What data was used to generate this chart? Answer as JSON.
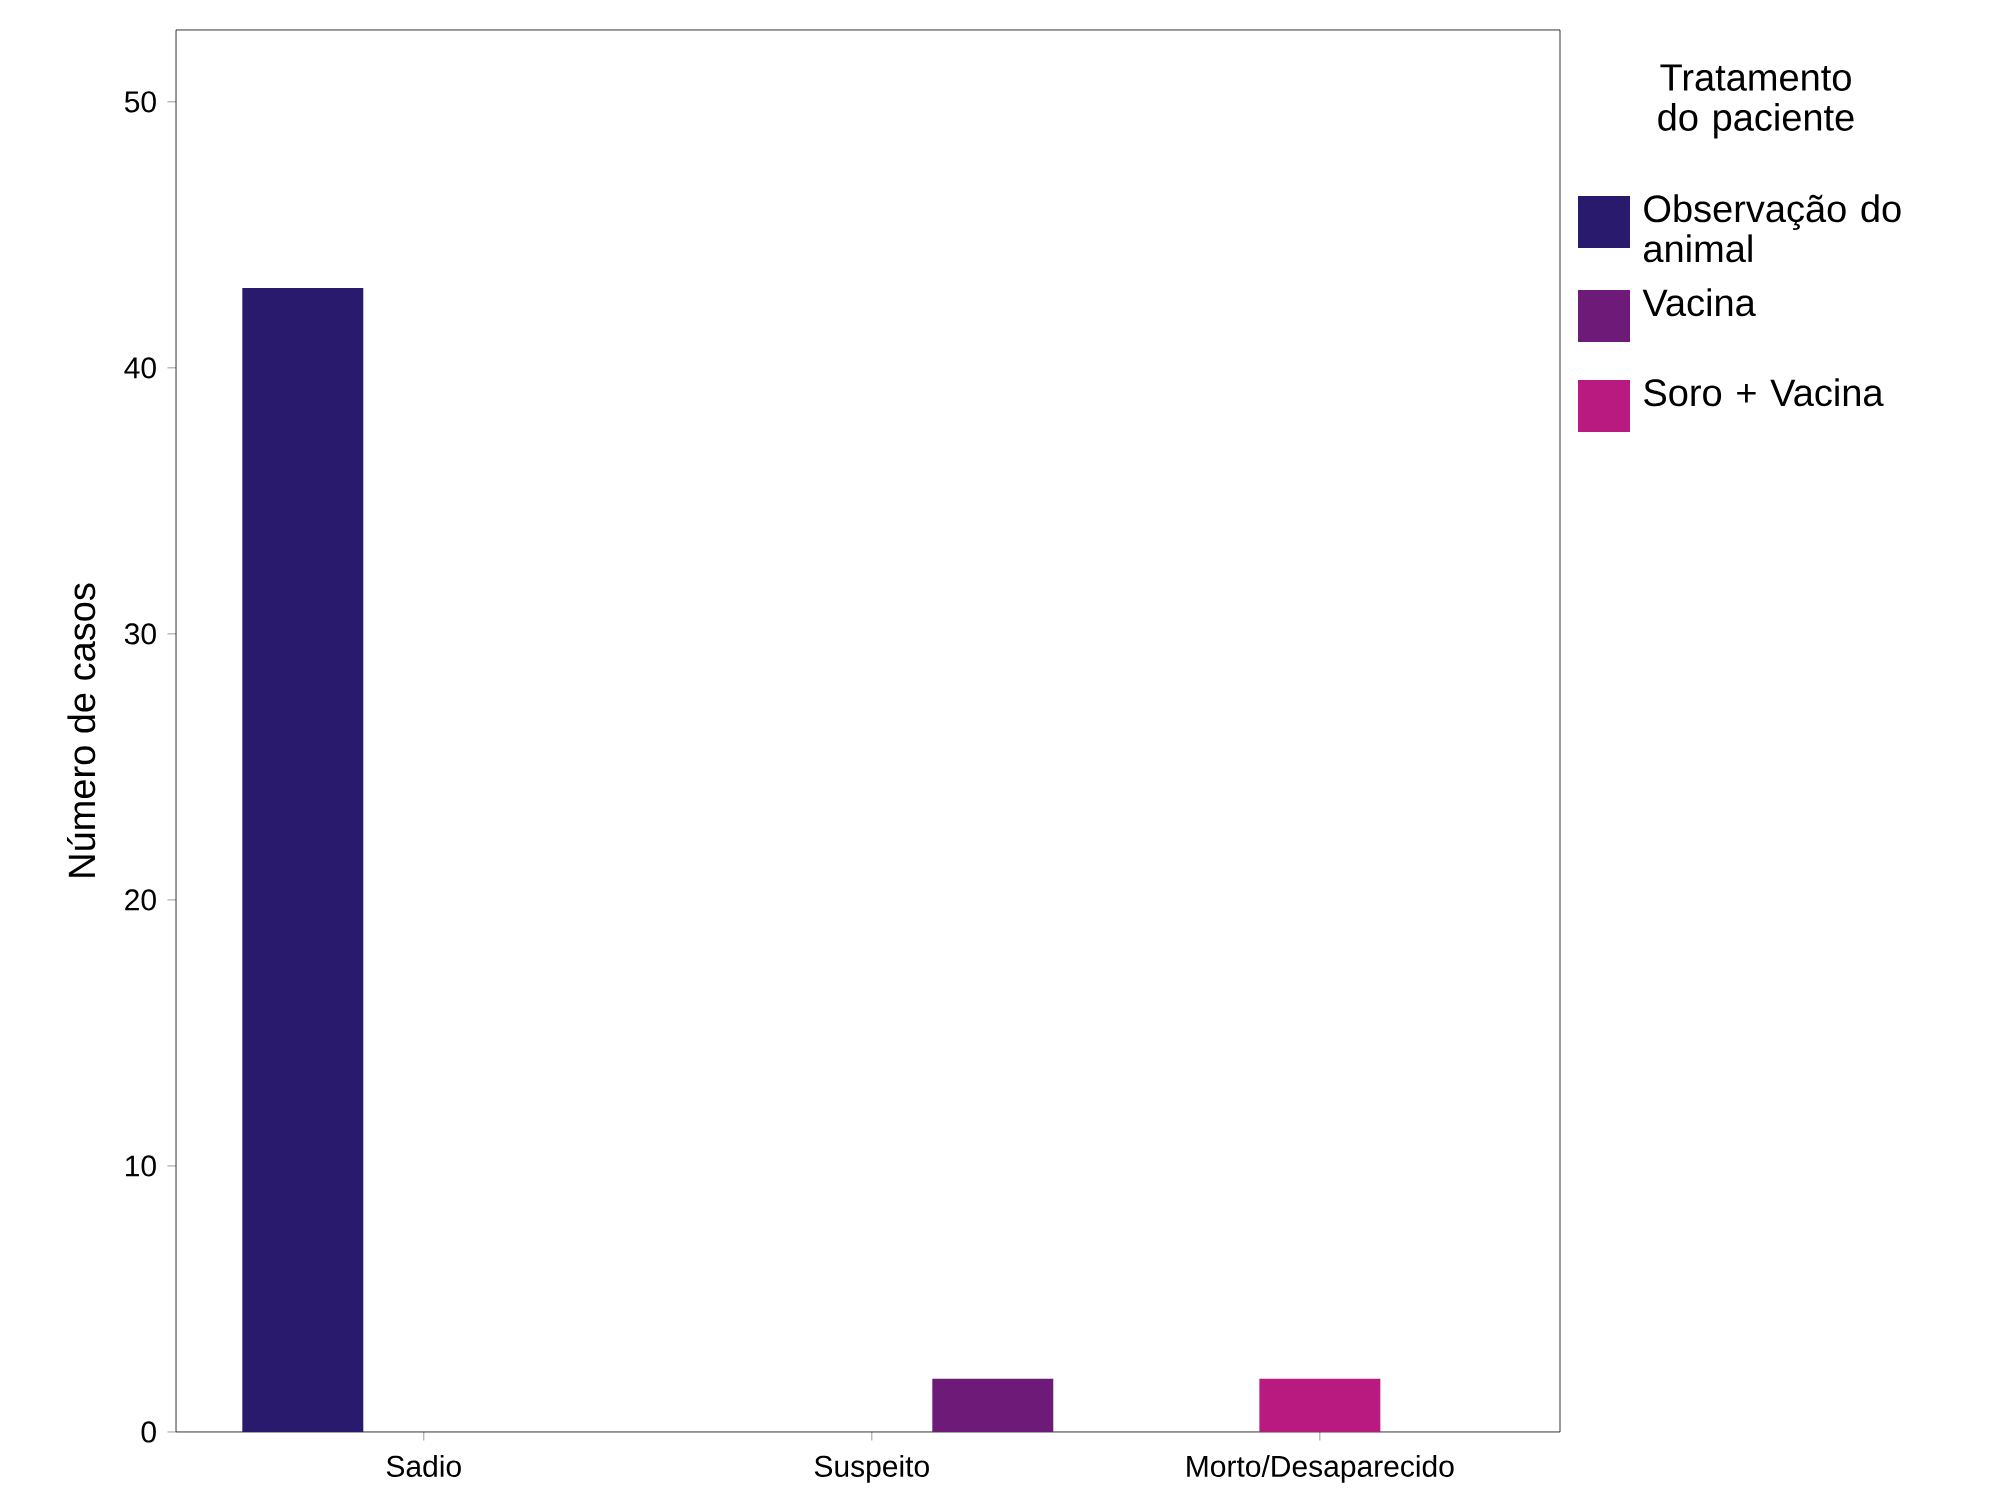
{
  "chart_data": {
    "type": "bar",
    "ylabel": "Número de casos",
    "legend_title": "Tratamento do paciente",
    "categories": [
      "Sadio",
      "Suspeito",
      "Morto/Desaparecido"
    ],
    "series": [
      {
        "name": "Observação do animal",
        "color": "#2a1a6e",
        "values": [
          43,
          null,
          null
        ]
      },
      {
        "name": "Vacina",
        "color": "#6e1a78",
        "values": [
          null,
          2,
          null
        ]
      },
      {
        "name": "Soro + Vacina",
        "color": "#b81a80",
        "values": [
          null,
          null,
          2
        ]
      }
    ],
    "ylim": [
      0,
      52.7
    ],
    "yticks": [
      0,
      10,
      20,
      30,
      40,
      50
    ],
    "legend": "top right",
    "grid": false
  }
}
